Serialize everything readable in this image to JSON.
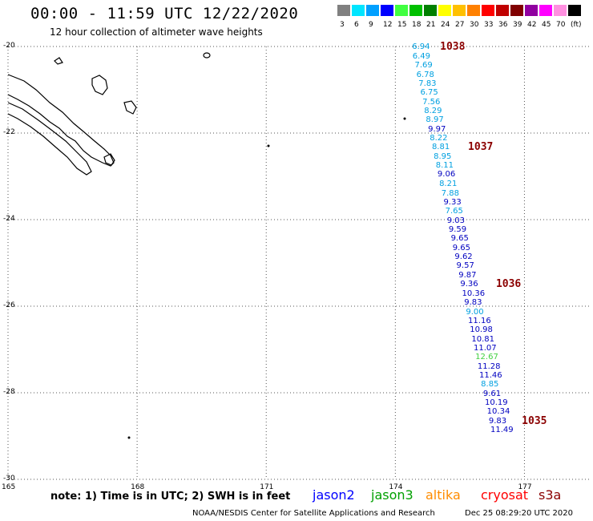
{
  "header": {
    "title": "00:00 - 11:59 UTC 12/22/2020",
    "subtitle": "12 hour collection of altimeter wave heights"
  },
  "legend": {
    "unit": "(ft)",
    "bins": [
      {
        "label": "3",
        "color": "#808080"
      },
      {
        "label": "6",
        "color": "#00e5ff"
      },
      {
        "label": "9",
        "color": "#00a0ff"
      },
      {
        "label": "12",
        "color": "#0000ff"
      },
      {
        "label": "15",
        "color": "#40ff40"
      },
      {
        "label": "18",
        "color": "#00c000"
      },
      {
        "label": "21",
        "color": "#008000"
      },
      {
        "label": "24",
        "color": "#ffff00"
      },
      {
        "label": "27",
        "color": "#ffc000"
      },
      {
        "label": "30",
        "color": "#ff8000"
      },
      {
        "label": "33",
        "color": "#ff0000"
      },
      {
        "label": "36",
        "color": "#c00000"
      },
      {
        "label": "39",
        "color": "#800000"
      },
      {
        "label": "42",
        "color": "#9000a0"
      },
      {
        "label": "45",
        "color": "#ff00ff"
      },
      {
        "label": "70",
        "color": "#ff90e0"
      },
      {
        "label": "",
        "color": "#000000"
      }
    ]
  },
  "axes": {
    "lat_ticks": [
      "-20",
      "-22",
      "-24",
      "-26",
      "-28",
      "-30"
    ],
    "lon_ticks": [
      "165",
      "168",
      "171",
      "174",
      "177"
    ]
  },
  "observations": [
    {
      "value": "6.94",
      "lat": -20.02,
      "lon": 174.65,
      "color": "#00a0e0"
    },
    {
      "value": "6.49",
      "lat": -20.24,
      "lon": 174.66,
      "color": "#00a0e0"
    },
    {
      "value": "7.69",
      "lat": -20.45,
      "lon": 174.71,
      "color": "#00a0e0"
    },
    {
      "value": "6.78",
      "lat": -20.66,
      "lon": 174.75,
      "color": "#00a0e0"
    },
    {
      "value": "7.83",
      "lat": -20.87,
      "lon": 174.8,
      "color": "#00a0e0"
    },
    {
      "value": "6.75",
      "lat": -21.08,
      "lon": 174.84,
      "color": "#00a0e0"
    },
    {
      "value": "7.56",
      "lat": -21.29,
      "lon": 174.89,
      "color": "#00a0e0"
    },
    {
      "value": "8.29",
      "lat": -21.5,
      "lon": 174.93,
      "color": "#00a0e0"
    },
    {
      "value": "8.97",
      "lat": -21.71,
      "lon": 174.97,
      "color": "#00a0e0"
    },
    {
      "value": "9.97",
      "lat": -21.92,
      "lon": 175.02,
      "color": "#0000c0"
    },
    {
      "value": "8.22",
      "lat": -22.13,
      "lon": 175.06,
      "color": "#00a0e0"
    },
    {
      "value": "8.81",
      "lat": -22.34,
      "lon": 175.11,
      "color": "#00a0e0"
    },
    {
      "value": "8.95",
      "lat": -22.55,
      "lon": 175.15,
      "color": "#00a0e0"
    },
    {
      "value": "8.11",
      "lat": -22.76,
      "lon": 175.2,
      "color": "#00a0e0"
    },
    {
      "value": "9.06",
      "lat": -22.97,
      "lon": 175.24,
      "color": "#0000c0"
    },
    {
      "value": "8.21",
      "lat": -23.18,
      "lon": 175.28,
      "color": "#00a0e0"
    },
    {
      "value": "7.88",
      "lat": -23.4,
      "lon": 175.33,
      "color": "#00a0e0"
    },
    {
      "value": "9.33",
      "lat": -23.61,
      "lon": 175.38,
      "color": "#0000c0"
    },
    {
      "value": "7.65",
      "lat": -23.82,
      "lon": 175.42,
      "color": "#00a0e0"
    },
    {
      "value": "9.03",
      "lat": -24.03,
      "lon": 175.46,
      "color": "#0000c0"
    },
    {
      "value": "9.59",
      "lat": -24.24,
      "lon": 175.5,
      "color": "#0000c0"
    },
    {
      "value": "9.65",
      "lat": -24.45,
      "lon": 175.55,
      "color": "#0000c0"
    },
    {
      "value": "9.65",
      "lat": -24.66,
      "lon": 175.59,
      "color": "#0000c0"
    },
    {
      "value": "9.62",
      "lat": -24.87,
      "lon": 175.64,
      "color": "#0000c0"
    },
    {
      "value": "9.57",
      "lat": -25.08,
      "lon": 175.68,
      "color": "#0000c0"
    },
    {
      "value": "9.87",
      "lat": -25.29,
      "lon": 175.73,
      "color": "#0000c0"
    },
    {
      "value": "9.36",
      "lat": -25.5,
      "lon": 175.77,
      "color": "#0000c0"
    },
    {
      "value": "10.36",
      "lat": -25.72,
      "lon": 175.81,
      "color": "#0000c0"
    },
    {
      "value": "9.83",
      "lat": -25.93,
      "lon": 175.86,
      "color": "#0000c0"
    },
    {
      "value": "9.00",
      "lat": -26.14,
      "lon": 175.9,
      "color": "#00a0e0"
    },
    {
      "value": "11.16",
      "lat": -26.35,
      "lon": 175.95,
      "color": "#0000c0"
    },
    {
      "value": "10.98",
      "lat": -26.56,
      "lon": 175.99,
      "color": "#0000c0"
    },
    {
      "value": "10.81",
      "lat": -26.77,
      "lon": 176.03,
      "color": "#0000c0"
    },
    {
      "value": "11.07",
      "lat": -26.98,
      "lon": 176.08,
      "color": "#0000c0"
    },
    {
      "value": "12.67",
      "lat": -27.19,
      "lon": 176.12,
      "color": "#40d040"
    },
    {
      "value": "11.28",
      "lat": -27.4,
      "lon": 176.17,
      "color": "#0000c0"
    },
    {
      "value": "11.46",
      "lat": -27.61,
      "lon": 176.21,
      "color": "#0000c0"
    },
    {
      "value": "8.85",
      "lat": -27.82,
      "lon": 176.25,
      "color": "#00a0e0"
    },
    {
      "value": "9.61",
      "lat": -28.03,
      "lon": 176.3,
      "color": "#0000c0"
    },
    {
      "value": "10.19",
      "lat": -28.24,
      "lon": 176.34,
      "color": "#0000c0"
    },
    {
      "value": "10.34",
      "lat": -28.45,
      "lon": 176.39,
      "color": "#0000c0"
    },
    {
      "value": "9.83",
      "lat": -28.66,
      "lon": 176.43,
      "color": "#0000c0"
    },
    {
      "value": "11.49",
      "lat": -28.87,
      "lon": 176.47,
      "color": "#0000c0"
    }
  ],
  "pressure_labels": [
    {
      "value": "1038",
      "lat": -20.02,
      "lon": 175.3
    },
    {
      "value": "1037",
      "lat": -22.34,
      "lon": 175.95
    },
    {
      "value": "1036",
      "lat": -25.5,
      "lon": 176.6
    },
    {
      "value": "1035",
      "lat": -28.66,
      "lon": 177.2
    }
  ],
  "note": "note: 1) Time is in UTC; 2) SWH is in feet",
  "satellites": [
    {
      "name": "jason2",
      "color": "#0000ff"
    },
    {
      "name": "jason3",
      "color": "#00a000"
    },
    {
      "name": "altika",
      "color": "#ff8c00"
    },
    {
      "name": "cryosat",
      "color": "#ff0000"
    },
    {
      "name": "s3a",
      "color": "#8b0000"
    }
  ],
  "footer": {
    "credit": "NOAA/NESDIS Center for Satellite Applications and Research",
    "timestamp": "Dec 25 08:29:20 UTC 2020"
  }
}
